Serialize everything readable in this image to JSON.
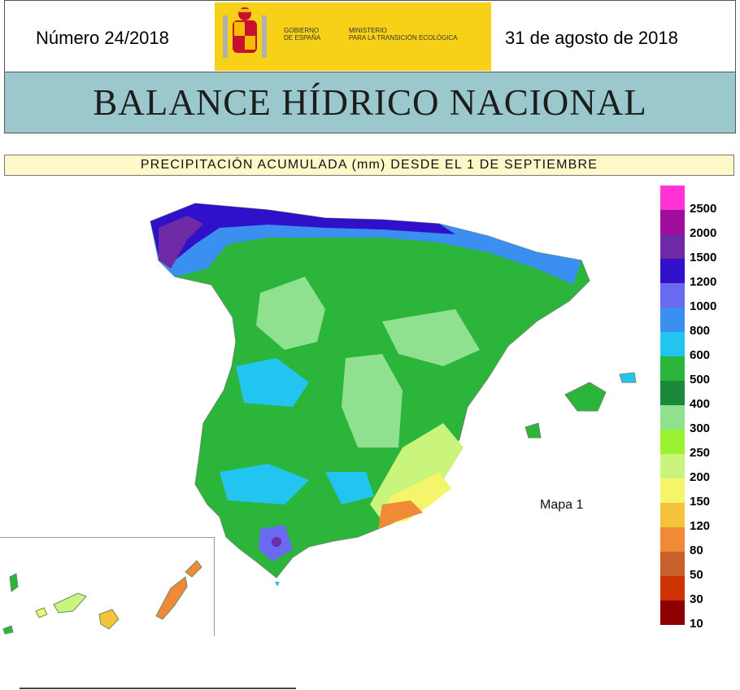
{
  "header": {
    "issue": "Número 24/2018",
    "date": "31 de agosto de 2018",
    "logo_left": "GOBIERNO DE ESPAÑA",
    "logo_left_l1": "GOBIERNO",
    "logo_left_l2": "DE ESPAÑA",
    "logo_right_l1": "MINISTERIO",
    "logo_right_l2": "PARA LA TRANSICIÓN ECOLÓGICA",
    "title": "BALANCE HÍDRICO NACIONAL"
  },
  "map": {
    "subtitle": "PRECIPITACIÓN ACUMULADA (mm) DESDE EL 1 DE SEPTIEMBRE",
    "label": "Mapa 1",
    "legend": [
      {
        "label": "2500",
        "color": "#ff33d6"
      },
      {
        "label": "2000",
        "color": "#a00c9b"
      },
      {
        "label": "1500",
        "color": "#6f2aa7"
      },
      {
        "label": "1200",
        "color": "#3010c8"
      },
      {
        "label": "1000",
        "color": "#6a6af0"
      },
      {
        "label": "800",
        "color": "#3b8ff0"
      },
      {
        "label": "600",
        "color": "#22c4f0"
      },
      {
        "label": "500",
        "color": "#2cb53b"
      },
      {
        "label": "400",
        "color": "#1a8a3a"
      },
      {
        "label": "300",
        "color": "#8fe08f"
      },
      {
        "label": "250",
        "color": "#9af230"
      },
      {
        "label": "200",
        "color": "#c9f57d"
      },
      {
        "label": "150",
        "color": "#f5f56b"
      },
      {
        "label": "120",
        "color": "#f5c33b"
      },
      {
        "label": "80",
        "color": "#f08a36"
      },
      {
        "label": "50",
        "color": "#c8602b"
      },
      {
        "label": "30",
        "color": "#cc3300"
      },
      {
        "label": "10",
        "color": "#8c0000"
      }
    ]
  }
}
